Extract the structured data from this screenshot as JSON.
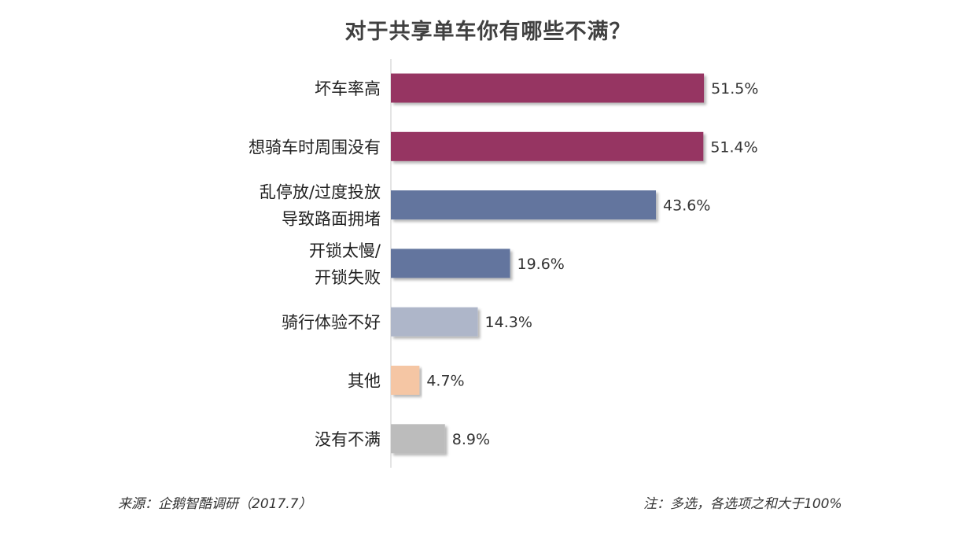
{
  "chart_data": {
    "type": "bar",
    "orientation": "horizontal",
    "title": "对于共享单车你有哪些不满？",
    "categories": [
      [
        "坏车率高"
      ],
      [
        "想骑车时周围没有"
      ],
      [
        "乱停放/过度投放",
        "导致路面拥堵"
      ],
      [
        "开锁太慢/",
        "开锁失败"
      ],
      [
        "骑行体验不好"
      ],
      [
        "其他"
      ],
      [
        "没有不满"
      ]
    ],
    "values": [
      51.5,
      51.4,
      43.6,
      19.6,
      14.3,
      4.7,
      8.9
    ],
    "value_labels": [
      "51.5%",
      "51.4%",
      "43.6%",
      "19.6%",
      "14.3%",
      "4.7%",
      "8.9%"
    ],
    "colors": [
      "#963462",
      "#963462",
      "#64749e",
      "#64749e",
      "#aeb6c9",
      "#f5c6a4",
      "#bcbcbc"
    ],
    "xlim": [
      0,
      100
    ],
    "grid": false
  },
  "footer": {
    "source": "来源：企鹅智酷调研（2017.7）",
    "note": "注：多选，各选项之和大于100%"
  }
}
